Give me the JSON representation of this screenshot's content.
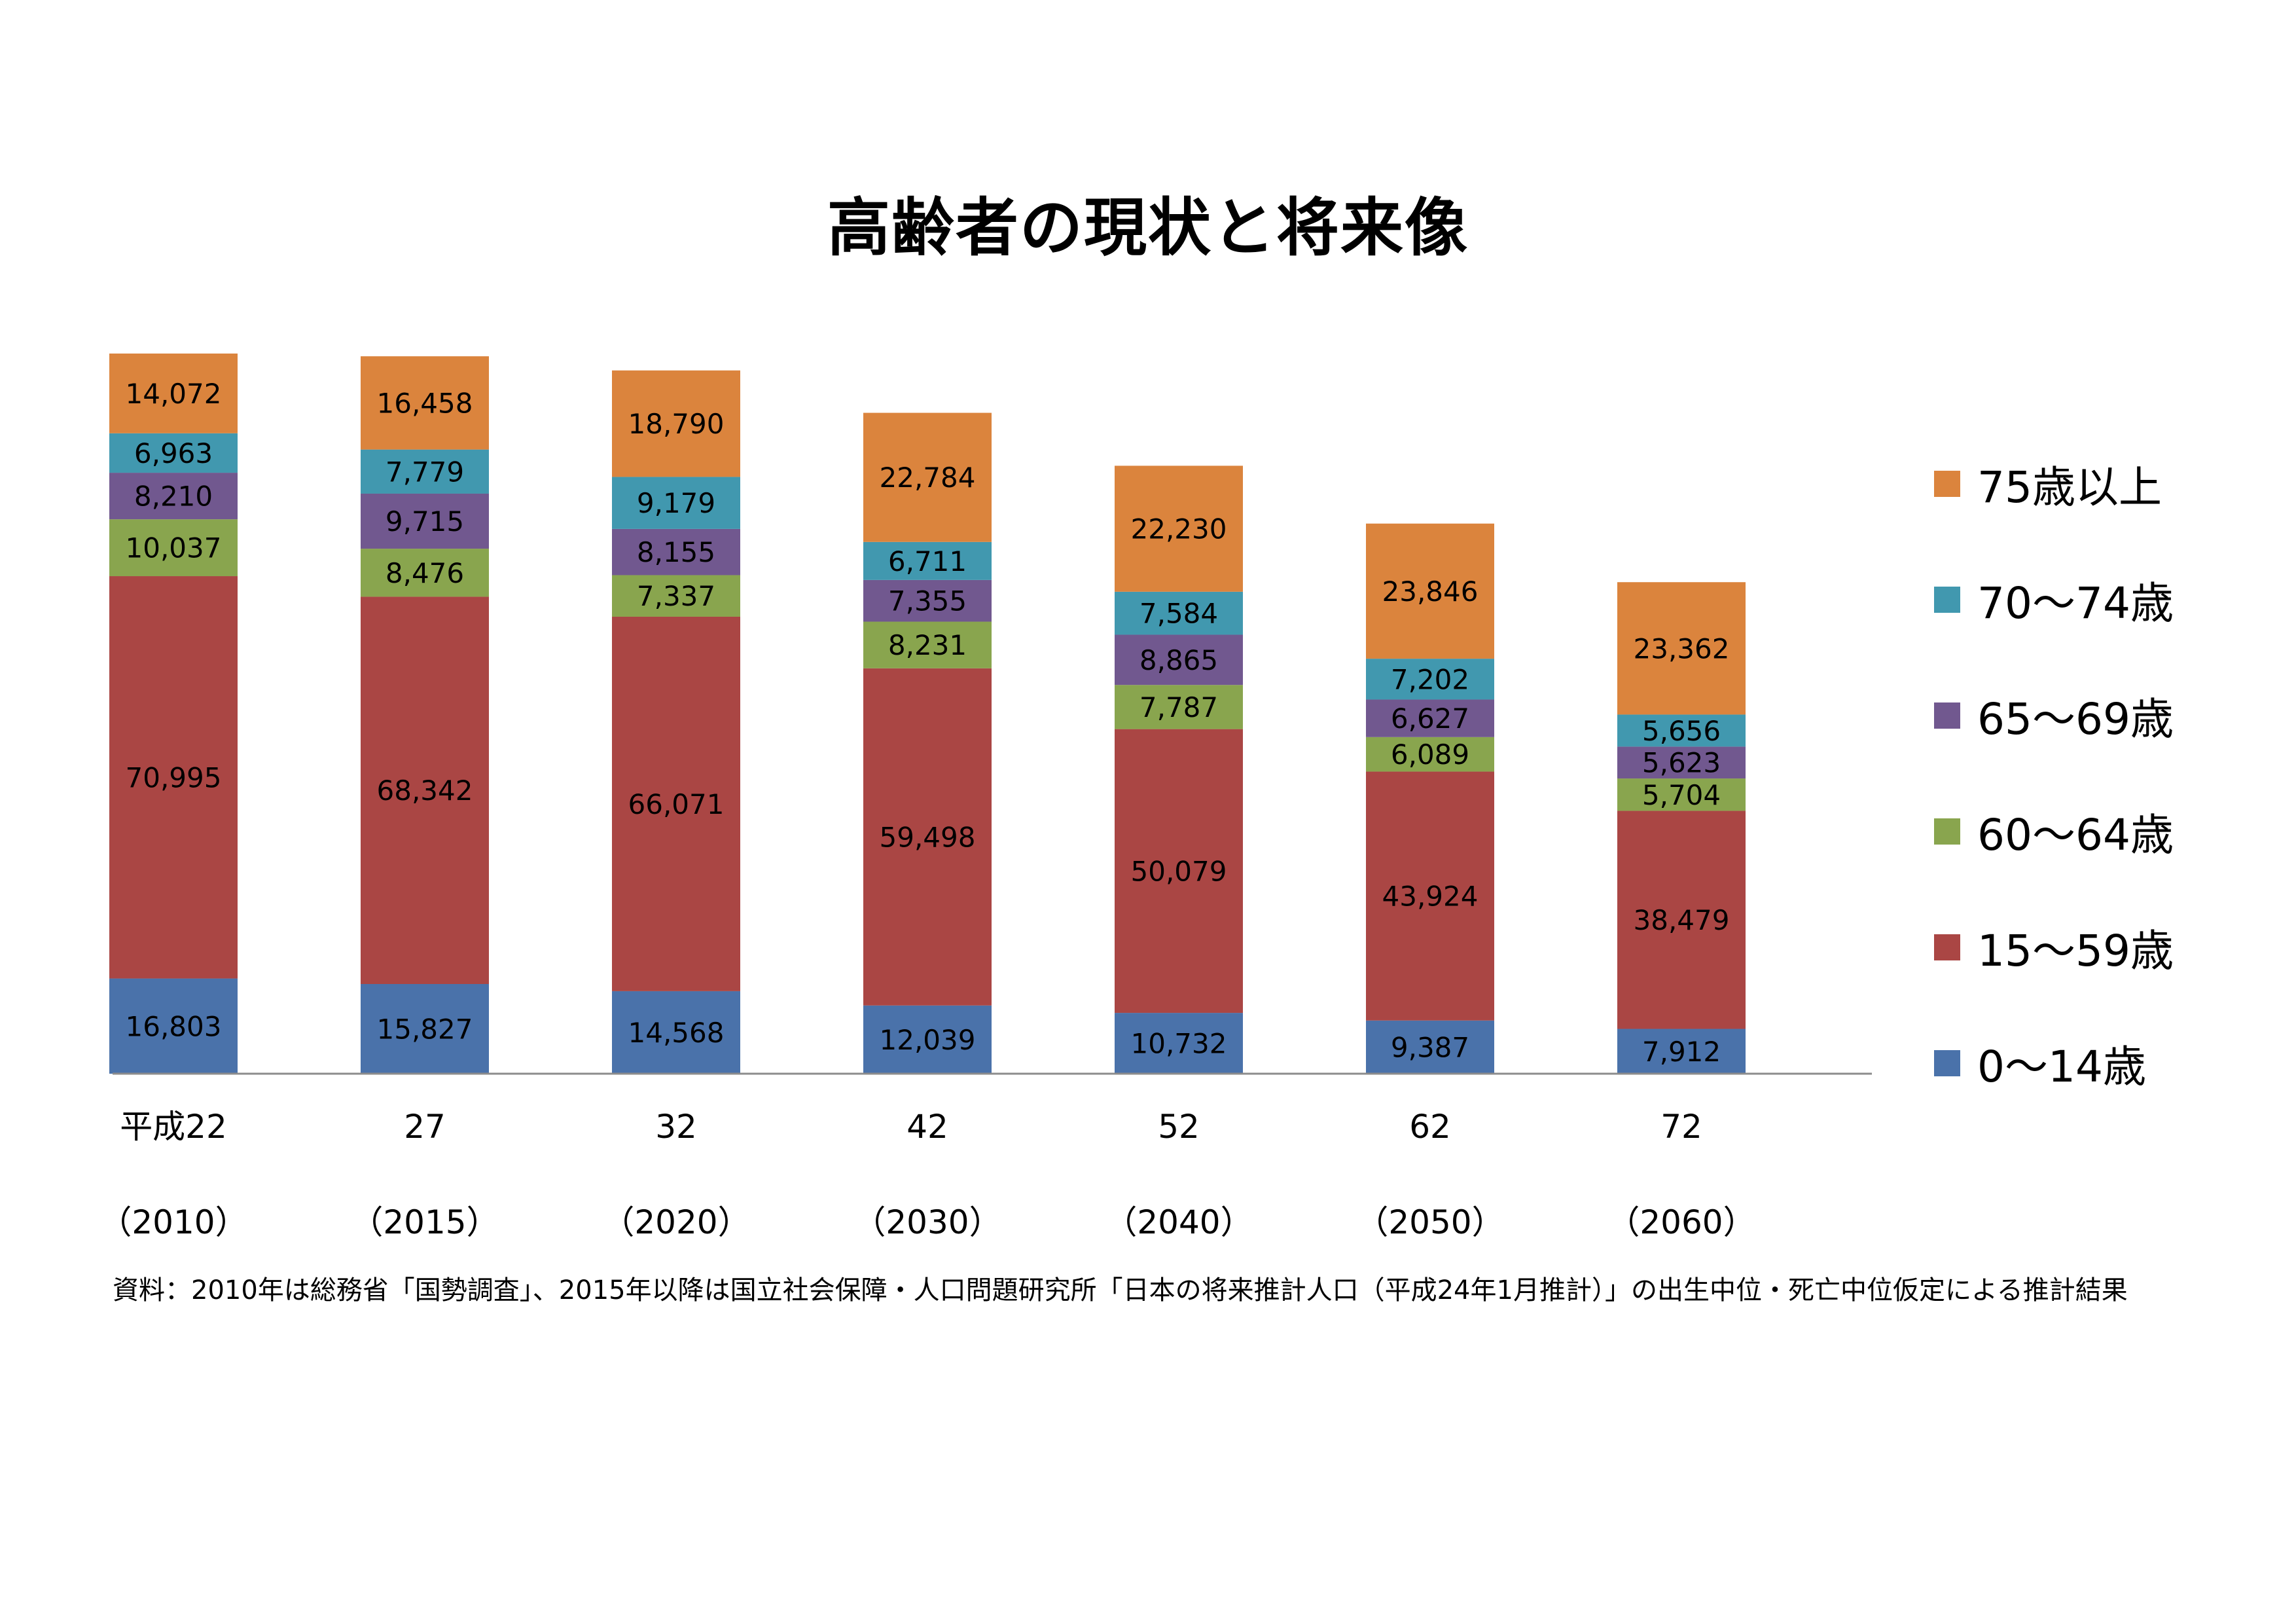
{
  "chart_data": {
    "type": "bar",
    "stacked": true,
    "title": "高齢者の現状と将来像",
    "categories": [
      "平成22",
      "27",
      "32",
      "42",
      "52",
      "62",
      "72"
    ],
    "sub_categories": [
      "（2010）",
      "（2015）",
      "（2020）",
      "（2030）",
      "（2040）",
      "（2050）",
      "（2060）"
    ],
    "series": [
      {
        "name": "0～14歳",
        "color": "#4a72aa",
        "values": [
          16803,
          15827,
          14568,
          12039,
          10732,
          9387,
          7912
        ]
      },
      {
        "name": "15～59歳",
        "color": "#aa4644",
        "values": [
          70995,
          68342,
          66071,
          59498,
          50079,
          43924,
          38479
        ]
      },
      {
        "name": "60～64歳",
        "color": "#89a54e",
        "values": [
          10037,
          8476,
          7337,
          8231,
          7787,
          6089,
          5704
        ]
      },
      {
        "name": "65～69歳",
        "color": "#71588f",
        "values": [
          8210,
          9715,
          8155,
          7355,
          8865,
          6627,
          5623
        ]
      },
      {
        "name": "70～74歳",
        "color": "#4198af",
        "values": [
          6963,
          7779,
          9179,
          6711,
          7584,
          7202,
          5656
        ]
      },
      {
        "name": "75歳以上",
        "color": "#db843d",
        "values": [
          14072,
          16458,
          18790,
          22784,
          22230,
          23846,
          23362
        ]
      }
    ],
    "legend_order": [
      "75歳以上",
      "70～74歳",
      "65～69歳",
      "60～64歳",
      "15～59歳",
      "0～14歳"
    ],
    "legend_position": "right",
    "grid": false
  },
  "source_note": "資料：2010年は総務省「国勢調査」、2015年以降は国立社会保障・人口問題研究所「日本の将来推計人口（平成24年1月推計）」の出生中位・死亡中位仮定による推計結果"
}
